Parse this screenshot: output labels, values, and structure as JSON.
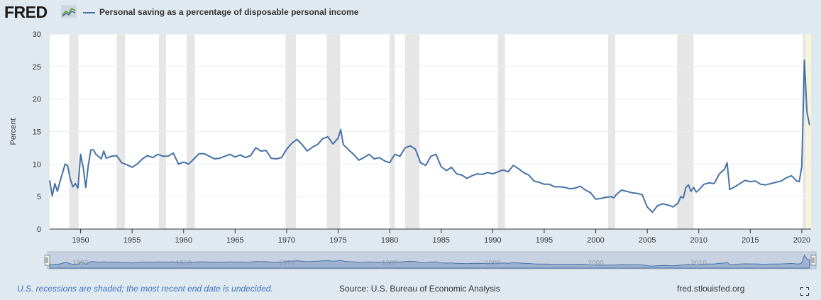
{
  "header": {
    "logo_text": "FRED",
    "logo_icon": "line-graph-icon",
    "series_title": "Personal saving as a percentage of disposable personal income"
  },
  "footer": {
    "recession_note": "U.S. recessions are shaded; the most recent end date is undecided.",
    "source": "Source: U.S. Bureau of Economic Analysis",
    "site": "fred.stlouisfed.org"
  },
  "colors": {
    "line": "#4572a7",
    "recession": "#e6e6e6",
    "background": "#e1e9f0",
    "plot": "#ffffff",
    "highlight": "#f7f4d6"
  },
  "chart_data": {
    "type": "line",
    "title": "",
    "xlabel": "",
    "ylabel": "Percent",
    "ylim": [
      0,
      30
    ],
    "xlim": [
      1947,
      2020.9
    ],
    "yticks": [
      0,
      5,
      10,
      15,
      20,
      25,
      30
    ],
    "xticks": [
      1950,
      1955,
      1960,
      1965,
      1970,
      1975,
      1980,
      1985,
      1990,
      1995,
      2000,
      2005,
      2010,
      2015,
      2020
    ],
    "grid": "horizontal",
    "legend": "top-left",
    "recessions": [
      [
        1948.9,
        1949.8
      ],
      [
        1953.5,
        1954.3
      ],
      [
        1957.6,
        1958.3
      ],
      [
        1960.3,
        1961.1
      ],
      [
        1969.9,
        1970.9
      ],
      [
        1973.9,
        1975.2
      ],
      [
        1980.0,
        1980.5
      ],
      [
        1981.5,
        1982.9
      ],
      [
        1990.5,
        1991.2
      ],
      [
        2001.2,
        2001.9
      ],
      [
        2007.9,
        2009.5
      ],
      [
        2020.1,
        2020.4
      ]
    ],
    "series": [
      {
        "name": "Personal saving as a percentage of disposable personal income",
        "x": [
          1947.0,
          1947.25,
          1947.5,
          1947.75,
          1948.0,
          1948.5,
          1948.75,
          1949.0,
          1949.25,
          1949.5,
          1949.75,
          1950.0,
          1950.25,
          1950.5,
          1950.75,
          1951.0,
          1951.25,
          1951.5,
          1952.0,
          1952.25,
          1952.5,
          1953.0,
          1953.5,
          1954.0,
          1954.5,
          1955.0,
          1955.5,
          1956.0,
          1956.5,
          1957.0,
          1957.5,
          1958.0,
          1958.5,
          1959.0,
          1959.5,
          1960.0,
          1960.5,
          1961.0,
          1961.5,
          1962.0,
          1962.5,
          1963.0,
          1963.5,
          1964.0,
          1964.5,
          1965.0,
          1965.5,
          1966.0,
          1966.5,
          1967.0,
          1967.5,
          1968.0,
          1968.5,
          1969.0,
          1969.5,
          1970.0,
          1970.5,
          1971.0,
          1971.5,
          1972.0,
          1972.5,
          1973.0,
          1973.5,
          1974.0,
          1974.5,
          1975.0,
          1975.25,
          1975.5,
          1976.0,
          1976.5,
          1977.0,
          1977.5,
          1978.0,
          1978.5,
          1979.0,
          1979.5,
          1980.0,
          1980.5,
          1981.0,
          1981.5,
          1982.0,
          1982.5,
          1983.0,
          1983.5,
          1984.0,
          1984.5,
          1985.0,
          1985.5,
          1986.0,
          1986.5,
          1987.0,
          1987.5,
          1988.0,
          1988.5,
          1989.0,
          1989.5,
          1990.0,
          1990.5,
          1991.0,
          1991.5,
          1992.0,
          1992.5,
          1993.0,
          1993.5,
          1994.0,
          1994.5,
          1995.0,
          1995.5,
          1996.0,
          1996.5,
          1997.0,
          1997.5,
          1998.0,
          1998.5,
          1999.0,
          1999.5,
          2000.0,
          2000.5,
          2001.0,
          2001.5,
          2001.75,
          2002.0,
          2002.5,
          2003.0,
          2003.5,
          2004.0,
          2004.5,
          2005.0,
          2005.5,
          2006.0,
          2006.5,
          2007.0,
          2007.5,
          2008.0,
          2008.25,
          2008.5,
          2008.75,
          2009.0,
          2009.25,
          2009.5,
          2009.75,
          2010.0,
          2010.5,
          2011.0,
          2011.5,
          2012.0,
          2012.5,
          2012.75,
          2013.0,
          2013.5,
          2014.0,
          2014.5,
          2015.0,
          2015.5,
          2016.0,
          2016.5,
          2017.0,
          2017.5,
          2018.0,
          2018.5,
          2019.0,
          2019.5,
          2019.75,
          2020.0,
          2020.25,
          2020.5,
          2020.75
        ],
        "y": [
          7.5,
          5.1,
          7.0,
          5.8,
          7.3,
          10.0,
          9.7,
          7.7,
          6.5,
          7.0,
          6.3,
          11.5,
          9.5,
          6.4,
          9.8,
          12.2,
          12.2,
          11.5,
          10.8,
          12.0,
          10.9,
          11.2,
          11.3,
          10.2,
          9.9,
          9.5,
          10.0,
          10.8,
          11.3,
          11.0,
          11.5,
          11.2,
          11.2,
          11.7,
          10.0,
          10.3,
          10.0,
          10.8,
          11.6,
          11.6,
          11.2,
          10.8,
          10.9,
          11.2,
          11.5,
          11.1,
          11.4,
          11.0,
          11.3,
          12.5,
          12.0,
          12.1,
          10.9,
          10.8,
          11.0,
          12.3,
          13.2,
          13.8,
          13.0,
          12.0,
          12.6,
          13.0,
          13.9,
          14.2,
          13.1,
          14.0,
          15.3,
          13.0,
          12.2,
          11.5,
          10.6,
          11.0,
          11.5,
          10.8,
          11.0,
          10.5,
          10.2,
          11.5,
          11.2,
          12.5,
          12.8,
          12.3,
          10.2,
          9.8,
          11.2,
          11.5,
          9.6,
          9.0,
          9.5,
          8.5,
          8.3,
          7.8,
          8.2,
          8.5,
          8.4,
          8.7,
          8.5,
          8.8,
          9.1,
          8.8,
          9.8,
          9.3,
          8.7,
          8.3,
          7.4,
          7.2,
          6.9,
          6.9,
          6.5,
          6.5,
          6.4,
          6.2,
          6.3,
          6.6,
          6.0,
          5.6,
          4.6,
          4.7,
          4.9,
          5.0,
          4.8,
          5.3,
          6.0,
          5.8,
          5.6,
          5.5,
          5.3,
          3.4,
          2.6,
          3.6,
          3.9,
          3.7,
          3.4,
          4.0,
          5.0,
          4.8,
          6.4,
          6.8,
          5.8,
          6.4,
          5.7,
          6.0,
          6.9,
          7.1,
          7.0,
          8.5,
          9.2,
          10.2,
          6.1,
          6.5,
          7.0,
          7.5,
          7.3,
          7.4,
          6.9,
          6.8,
          7.0,
          7.2,
          7.4,
          7.9,
          8.2,
          7.4,
          7.3,
          9.6,
          26.0,
          18.0,
          16.0
        ]
      }
    ]
  },
  "navigator": {
    "labels": [
      "1950",
      "1960",
      "1970",
      "1980",
      "1990",
      "2000",
      "2010"
    ]
  }
}
